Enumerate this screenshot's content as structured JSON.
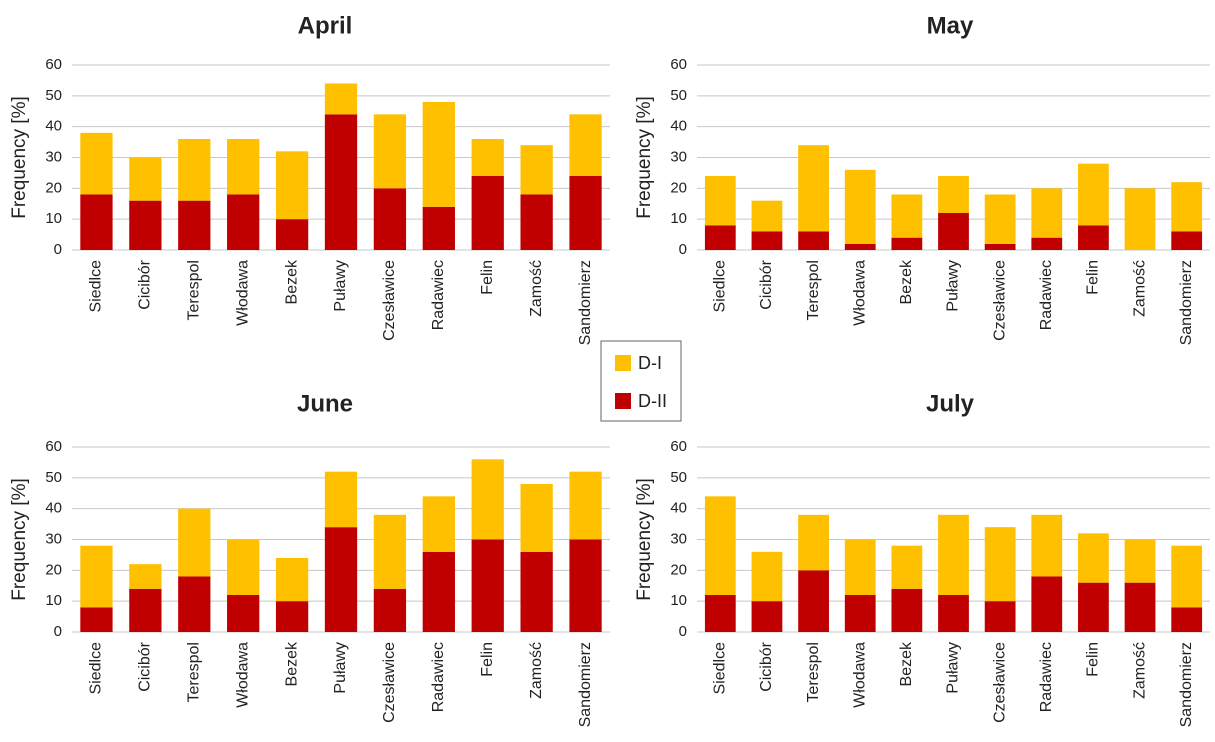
{
  "chart_data": [
    {
      "type": "bar",
      "stacked": true,
      "title": "April",
      "y_label": "Frequency [%]",
      "categories": [
        "Siedlce",
        "Cicibór",
        "Terespol",
        "Włodawa",
        "Bezek",
        "Puławy",
        "Czesławice",
        "Radawiec",
        "Felin",
        "Zamość",
        "Sandomierz"
      ],
      "series": [
        {
          "name": "D-I",
          "color": "#ffc000",
          "values": [
            20,
            14,
            20,
            18,
            22,
            10,
            24,
            34,
            12,
            16,
            20
          ]
        },
        {
          "name": "D-II",
          "color": "#c00000",
          "values": [
            18,
            16,
            16,
            18,
            10,
            44,
            20,
            14,
            24,
            18,
            24
          ]
        }
      ],
      "ylim": [
        0,
        60
      ],
      "yticks": [
        0,
        10,
        20,
        30,
        40,
        50,
        60
      ],
      "grid": true
    },
    {
      "type": "bar",
      "stacked": true,
      "title": "May",
      "y_label": "Frequency [%]",
      "categories": [
        "Siedlce",
        "Cicibór",
        "Terespol",
        "Włodawa",
        "Bezek",
        "Puławy",
        "Czesławice",
        "Radawiec",
        "Felin",
        "Zamość",
        "Sandomierz"
      ],
      "series": [
        {
          "name": "D-I",
          "color": "#ffc000",
          "values": [
            16,
            10,
            28,
            24,
            14,
            12,
            16,
            16,
            20,
            20,
            16
          ]
        },
        {
          "name": "D-II",
          "color": "#c00000",
          "values": [
            8,
            6,
            6,
            2,
            4,
            12,
            2,
            4,
            8,
            0,
            6
          ]
        }
      ],
      "ylim": [
        0,
        60
      ],
      "yticks": [
        0,
        10,
        20,
        30,
        40,
        50,
        60
      ],
      "grid": true
    },
    {
      "type": "bar",
      "stacked": true,
      "title": "June",
      "y_label": "Frequency [%]",
      "categories": [
        "Siedlce",
        "Cicibór",
        "Terespol",
        "Włodawa",
        "Bezek",
        "Puławy",
        "Czesławice",
        "Radawiec",
        "Felin",
        "Zamość",
        "Sandomierz"
      ],
      "series": [
        {
          "name": "D-I",
          "color": "#ffc000",
          "values": [
            20,
            8,
            22,
            18,
            14,
            18,
            24,
            18,
            26,
            22,
            22
          ]
        },
        {
          "name": "D-II",
          "color": "#c00000",
          "values": [
            8,
            14,
            18,
            12,
            10,
            34,
            14,
            26,
            30,
            26,
            30
          ]
        }
      ],
      "ylim": [
        0,
        60
      ],
      "yticks": [
        0,
        10,
        20,
        30,
        40,
        50,
        60
      ],
      "grid": true
    },
    {
      "type": "bar",
      "stacked": true,
      "title": "July",
      "y_label": "Frequency [%]",
      "categories": [
        "Siedlce",
        "Cicibór",
        "Terespol",
        "Włodawa",
        "Bezek",
        "Puławy",
        "Czesławice",
        "Radawiec",
        "Felin",
        "Zamość",
        "Sandomierz"
      ],
      "series": [
        {
          "name": "D-I",
          "color": "#ffc000",
          "values": [
            32,
            16,
            18,
            18,
            14,
            26,
            24,
            20,
            16,
            14,
            20
          ]
        },
        {
          "name": "D-II",
          "color": "#c00000",
          "values": [
            12,
            10,
            20,
            12,
            14,
            12,
            10,
            18,
            16,
            16,
            8
          ]
        }
      ],
      "ylim": [
        0,
        60
      ],
      "yticks": [
        0,
        10,
        20,
        30,
        40,
        50,
        60
      ],
      "grid": true
    }
  ]
}
